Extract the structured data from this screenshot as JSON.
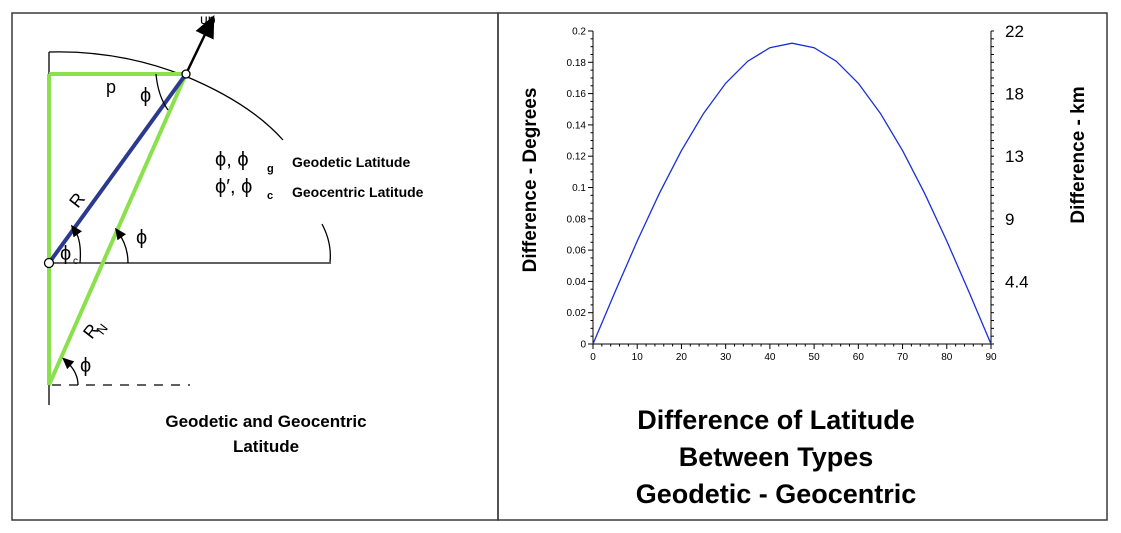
{
  "colors": {
    "frame": "#3a3a3a",
    "construction": "#8be04e",
    "radius": "#2b3a8f",
    "curve": "#1a2fd6",
    "ink": "#000000"
  },
  "left_panel": {
    "caption_line1": "Geodetic and Geocentric",
    "caption_line2": "Latitude",
    "label_up": "up",
    "label_p": "p",
    "label_phi": "ϕ",
    "label_R": "R",
    "label_RN_main": "R",
    "label_RN_sub": "N",
    "label_phi_c_main": "ϕ",
    "label_phi_c_sub": "c",
    "legend": {
      "row1_symbols": "ϕ,  ϕ",
      "row1_sub": "g",
      "row1_text": "Geodetic Latitude",
      "row2_symbols": "ϕ′,  ϕ",
      "row2_sub": "c",
      "row2_text": "Geocentric Latitude"
    }
  },
  "right_panel": {
    "title_line1": "Difference of Latitude",
    "title_line2": "Between Types",
    "title_line3": "Geodetic - Geocentric"
  },
  "chart_data": {
    "type": "line",
    "title": "",
    "xlabel": "",
    "ylabel": "Difference - Degrees",
    "ylabel_right": "Difference - km",
    "xlim": [
      0,
      90
    ],
    "ylim": [
      0,
      0.2
    ],
    "x_ticks": [
      "0",
      "10",
      "20",
      "30",
      "40",
      "50",
      "60",
      "70",
      "80",
      "90"
    ],
    "y_ticks": [
      "0",
      "0.02",
      "0.04",
      "0.06",
      "0.08",
      "0.1",
      "0.12",
      "0.14",
      "0.16",
      "0.18",
      "0.2"
    ],
    "y2_ticks": [
      {
        "label": "22",
        "value": 0.2
      },
      {
        "label": "18",
        "value": 0.16
      },
      {
        "label": "13",
        "value": 0.12
      },
      {
        "label": "9",
        "value": 0.08
      },
      {
        "label": "4.4",
        "value": 0.04
      }
    ],
    "grid": false,
    "series": [
      {
        "x": [
          0,
          5,
          10,
          15,
          20,
          25,
          30,
          35,
          40,
          45,
          50,
          55,
          60,
          65,
          70,
          75,
          80,
          85,
          90
        ],
        "y": [
          0,
          0.0334,
          0.0658,
          0.0962,
          0.1236,
          0.1473,
          0.1666,
          0.1807,
          0.1893,
          0.1922,
          0.1893,
          0.1807,
          0.1666,
          0.1473,
          0.1236,
          0.0962,
          0.0658,
          0.0334,
          0
        ]
      }
    ]
  }
}
